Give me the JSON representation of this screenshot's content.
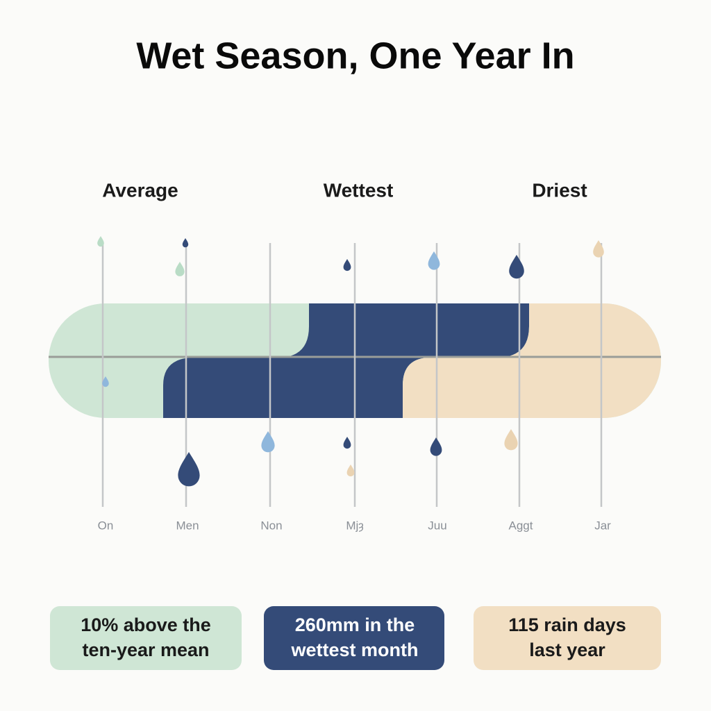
{
  "header": {
    "title": "Wet Season, One Year In"
  },
  "bands": [
    {
      "label": "Average"
    },
    {
      "label": "Wettest"
    },
    {
      "label": "Driest"
    }
  ],
  "axis": {
    "labels": [
      "On",
      "Men",
      "Non",
      "Mjȝ",
      "Juu",
      "Aggt",
      "Jar"
    ]
  },
  "cards": [
    {
      "lines": [
        "10% above the",
        "ten-year mean"
      ]
    },
    {
      "lines": [
        "260mm in the",
        "wettest month"
      ]
    },
    {
      "lines": [
        "115 rain days",
        "last year"
      ]
    }
  ]
}
